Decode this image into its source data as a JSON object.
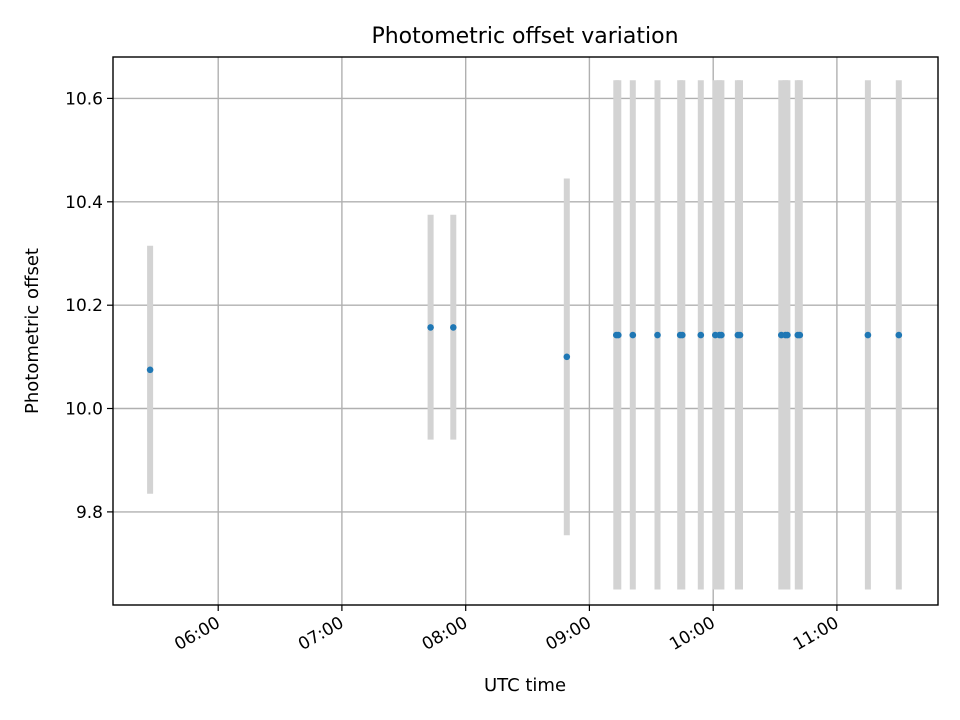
{
  "chart_data": {
    "type": "scatter",
    "title": "Photometric offset variation",
    "xlabel": "UTC time",
    "ylabel": "Photometric offset",
    "x_axis": {
      "kind": "time",
      "range": [
        "05:09",
        "11:49"
      ],
      "ticks": [
        "06:00",
        "07:00",
        "08:00",
        "09:00",
        "10:00",
        "11:00"
      ]
    },
    "y_axis": {
      "range": [
        9.62,
        10.68
      ],
      "ticks": [
        9.8,
        10.0,
        10.2,
        10.4,
        10.6
      ],
      "tick_labels": [
        "9.8",
        "10.0",
        "10.2",
        "10.4",
        "10.6"
      ]
    },
    "grid": true,
    "marker_color": "#1f77b4",
    "errorbar_color": "#d3d3d3",
    "series": [
      {
        "points": [
          {
            "x": "05:27",
            "y": 10.075,
            "err_low": 9.835,
            "err_high": 10.315
          },
          {
            "x": "07:43",
            "y": 10.157,
            "err_low": 9.94,
            "err_high": 10.375
          },
          {
            "x": "07:54",
            "y": 10.157,
            "err_low": 9.94,
            "err_high": 10.375
          },
          {
            "x": "08:49",
            "y": 10.1,
            "err_low": 9.755,
            "err_high": 10.445
          },
          {
            "x": "09:13",
            "y": 10.142,
            "err_low": 9.65,
            "err_high": 10.635
          },
          {
            "x": "09:14",
            "y": 10.142,
            "err_low": 9.65,
            "err_high": 10.635
          },
          {
            "x": "09:21",
            "y": 10.142,
            "err_low": 9.65,
            "err_high": 10.635
          },
          {
            "x": "09:33",
            "y": 10.142,
            "err_low": 9.65,
            "err_high": 10.635
          },
          {
            "x": "09:44",
            "y": 10.142,
            "err_low": 9.65,
            "err_high": 10.635
          },
          {
            "x": "09:45",
            "y": 10.142,
            "err_low": 9.65,
            "err_high": 10.635
          },
          {
            "x": "09:54",
            "y": 10.142,
            "err_low": 9.65,
            "err_high": 10.635
          },
          {
            "x": "10:01",
            "y": 10.142,
            "err_low": 9.65,
            "err_high": 10.635
          },
          {
            "x": "10:03",
            "y": 10.142,
            "err_low": 9.65,
            "err_high": 10.635
          },
          {
            "x": "10:04",
            "y": 10.142,
            "err_low": 9.65,
            "err_high": 10.635
          },
          {
            "x": "10:12",
            "y": 10.142,
            "err_low": 9.65,
            "err_high": 10.635
          },
          {
            "x": "10:13",
            "y": 10.142,
            "err_low": 9.65,
            "err_high": 10.635
          },
          {
            "x": "10:33",
            "y": 10.142,
            "err_low": 9.65,
            "err_high": 10.635
          },
          {
            "x": "10:35",
            "y": 10.142,
            "err_low": 9.65,
            "err_high": 10.635
          },
          {
            "x": "10:36",
            "y": 10.142,
            "err_low": 9.65,
            "err_high": 10.635
          },
          {
            "x": "10:41",
            "y": 10.142,
            "err_low": 9.65,
            "err_high": 10.635
          },
          {
            "x": "10:42",
            "y": 10.142,
            "err_low": 9.65,
            "err_high": 10.635
          },
          {
            "x": "11:15",
            "y": 10.142,
            "err_low": 9.65,
            "err_high": 10.635
          },
          {
            "x": "11:30",
            "y": 10.142,
            "err_low": 9.65,
            "err_high": 10.635
          }
        ]
      }
    ]
  }
}
